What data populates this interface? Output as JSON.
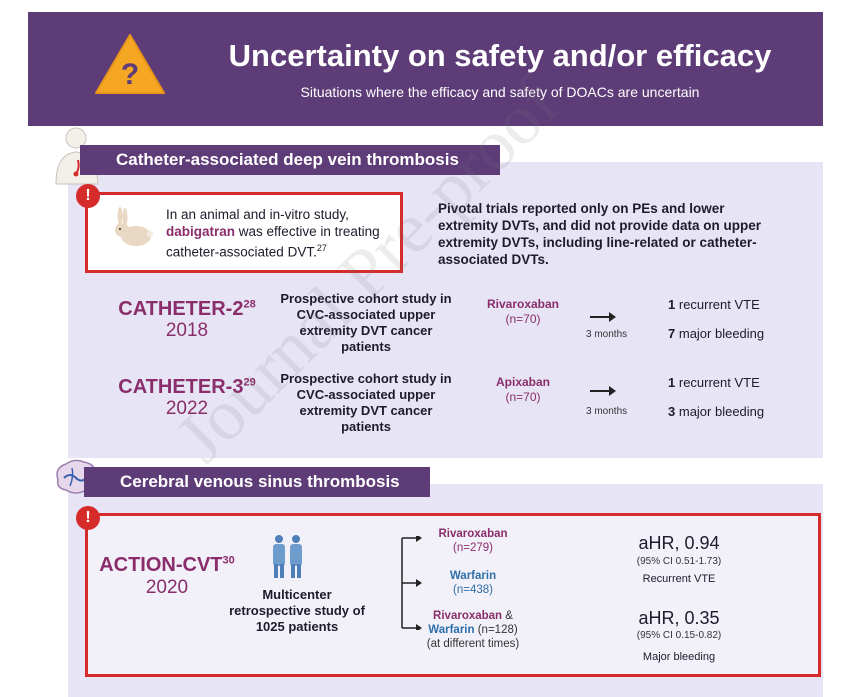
{
  "header": {
    "icon": "question-warning-icon",
    "title": "Uncertainty on safety and/or efficacy",
    "subtitle": "Situations where the efficacy and safety of DOACs are uncertain"
  },
  "section1": {
    "title": "Catheter-associated deep vein thrombosis",
    "animal_study": {
      "pre": "In an animal and in-vitro study,",
      "drug": "dabigatran",
      "post": "was effective in treating catheter-associated DVT.",
      "ref": "27"
    },
    "pivotal": "Pivotal trials reported only on PEs and lower extremity DVTs, and did not provide data on upper extremity DVTs, including line-related or catheter-associated DVTs.",
    "trials": [
      {
        "name": "CATHETER-2",
        "ref": "28",
        "year": "2018",
        "desc": "Prospective cohort study in CVC-associated upper extremity DVT cancer patients",
        "drug": "Rivaroxaban",
        "n": "(n=70)",
        "months": "3 months",
        "vte_num": "1",
        "vte_label": "recurrent VTE",
        "bleed_num": "7",
        "bleed_label": "major bleeding"
      },
      {
        "name": "CATHETER-3",
        "ref": "29",
        "year": "2022",
        "desc": "Prospective cohort study in CVC-associated upper extremity DVT cancer patients",
        "drug": "Apixaban",
        "n": "(n=70)",
        "months": "3 months",
        "vte_num": "1",
        "vte_label": "recurrent VTE",
        "bleed_num": "3",
        "bleed_label": "major bleeding"
      }
    ]
  },
  "section2": {
    "title": "Cerebral venous sinus thrombosis",
    "trial": {
      "name": "ACTION-CVT",
      "ref": "30",
      "year": "2020",
      "desc": "Multicenter retrospective study of 1025 patients"
    },
    "arms": {
      "riva": "Rivaroxaban",
      "riva_n": "(n=279)",
      "warf": "Warfarin",
      "warf_n": "(n=438)",
      "combo_a": "Rivaroxaban",
      "combo_amp": " &",
      "combo_b": "Warfarin",
      "combo_n": " (n=128)",
      "combo_note": "(at different times)"
    },
    "results": [
      {
        "ahr": "aHR, 0.94",
        "ci": "(95% CI 0.51-1.73)",
        "label": "Recurrent VTE"
      },
      {
        "ahr": "aHR, 0.35",
        "ci": "(95% CI 0.15-0.82)",
        "label": "Major bleeding"
      }
    ]
  },
  "watermark": "Journal Pre-proof",
  "colors": {
    "purple": "#5e3c78",
    "red": "#d62b2b",
    "panel": "#e7e5f5",
    "drug_purple": "#8a2d6b",
    "drug_blue": "#2f6fa8"
  }
}
